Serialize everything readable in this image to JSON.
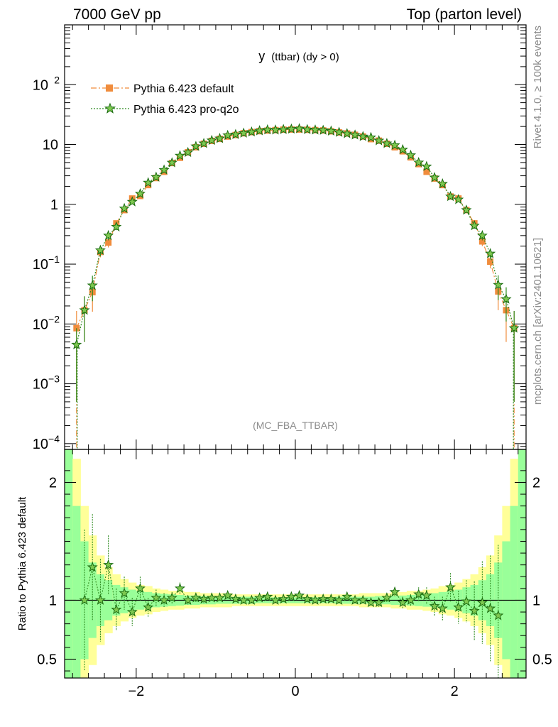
{
  "header": {
    "left": "7000 GeV pp",
    "right": "Top (parton level)"
  },
  "side_labels": {
    "rivet": "Rivet 4.1.0, ≥ 100k events",
    "mcplots": "mcplots.cern.ch [arXiv:2401.10621]"
  },
  "colors": {
    "default": "#f08c3c",
    "proq2o": "#2e8b20",
    "band_outer": "#ffff99",
    "band_inner": "#99ff99"
  },
  "chart_data": [
    {
      "type": "line",
      "title": "y (ttbar) (dy > 0)",
      "title_main": "y",
      "title_sub": "(ttbar) (dy > 0)",
      "analysis": "(MC_FBA_TTBAR)",
      "yscale": "log",
      "xlim": [
        -2.9,
        2.9
      ],
      "ylim": [
        8e-05,
        1000
      ],
      "yticks": [
        {
          "v": 0.0001,
          "b": "10",
          "e": "−4"
        },
        {
          "v": 0.001,
          "b": "10",
          "e": "−3"
        },
        {
          "v": 0.01,
          "b": "10",
          "e": "−2"
        },
        {
          "v": 0.1,
          "b": "10",
          "e": "−1"
        },
        {
          "v": 1,
          "b": "1",
          "e": ""
        },
        {
          "v": 10,
          "b": "10",
          "e": ""
        },
        {
          "v": 100,
          "b": "10",
          "e": "2"
        }
      ],
      "x": [
        -2.75,
        -2.65,
        -2.55,
        -2.45,
        -2.35,
        -2.25,
        -2.15,
        -2.05,
        -1.95,
        -1.85,
        -1.75,
        -1.65,
        -1.55,
        -1.45,
        -1.35,
        -1.25,
        -1.15,
        -1.05,
        -0.95,
        -0.85,
        -0.75,
        -0.65,
        -0.55,
        -0.45,
        -0.35,
        -0.25,
        -0.15,
        -0.05,
        0.05,
        0.15,
        0.25,
        0.35,
        0.45,
        0.55,
        0.65,
        0.75,
        0.85,
        0.95,
        1.05,
        1.15,
        1.25,
        1.35,
        1.45,
        1.55,
        1.65,
        1.75,
        1.85,
        1.95,
        2.05,
        2.15,
        2.25,
        2.35,
        2.45,
        2.55,
        2.65,
        2.75
      ],
      "series": [
        {
          "name": "Pythia 6.423 default",
          "marker": "square",
          "values": [
            0.0085,
            0.017,
            0.034,
            0.16,
            0.23,
            0.48,
            0.8,
            1.25,
            1.38,
            2.1,
            2.75,
            3.5,
            4.9,
            6.0,
            7.4,
            9.0,
            10.3,
            11.5,
            12.4,
            13.6,
            14.4,
            15.4,
            16.1,
            16.7,
            17.1,
            17.4,
            17.7,
            17.8,
            17.8,
            17.6,
            17.4,
            17.2,
            16.6,
            15.9,
            15.3,
            14.5,
            13.6,
            12.3,
            11.6,
            10.3,
            9.0,
            7.7,
            6.1,
            4.7,
            3.5,
            2.7,
            2.1,
            1.35,
            1.25,
            0.8,
            0.48,
            0.24,
            0.11,
            0.035,
            0.017,
            0.0085
          ],
          "err": [
            0.008,
            0.012,
            0.018,
            0.03,
            0.04,
            0.05,
            0.06,
            0.08,
            0.08,
            0.1,
            0.12,
            0.14,
            0.16,
            0.18,
            0.2,
            0.22,
            0.24,
            0.25,
            0.26,
            0.28,
            0.28,
            0.3,
            0.3,
            0.3,
            0.3,
            0.3,
            0.3,
            0.3,
            0.3,
            0.3,
            0.3,
            0.3,
            0.3,
            0.3,
            0.3,
            0.28,
            0.28,
            0.26,
            0.25,
            0.24,
            0.22,
            0.2,
            0.18,
            0.16,
            0.14,
            0.12,
            0.1,
            0.08,
            0.08,
            0.06,
            0.05,
            0.04,
            0.025,
            0.018,
            0.012,
            0.008
          ]
        },
        {
          "name": "Pythia 6.423 pro-q2o",
          "marker": "star",
          "values": [
            0.0045,
            0.017,
            0.044,
            0.17,
            0.3,
            0.42,
            0.85,
            1.1,
            1.5,
            2.3,
            2.85,
            3.75,
            4.95,
            6.5,
            7.35,
            9.3,
            10.4,
            11.7,
            12.6,
            14.2,
            14.7,
            15.5,
            16.2,
            17.0,
            17.6,
            17.5,
            17.8,
            18.1,
            18.4,
            17.8,
            17.5,
            17.3,
            16.8,
            16.0,
            15.2,
            14.4,
            13.6,
            13.1,
            11.6,
            10.4,
            9.7,
            8.2,
            6.6,
            5.0,
            4.3,
            2.8,
            2.2,
            1.35,
            1.2,
            0.8,
            0.44,
            0.3,
            0.15,
            0.045,
            0.026,
            0.0085
          ],
          "err": [
            0.004,
            0.012,
            0.02,
            0.035,
            0.05,
            0.05,
            0.07,
            0.08,
            0.1,
            0.12,
            0.14,
            0.16,
            0.18,
            0.2,
            0.22,
            0.24,
            0.26,
            0.27,
            0.28,
            0.3,
            0.3,
            0.32,
            0.32,
            0.32,
            0.32,
            0.32,
            0.32,
            0.32,
            0.32,
            0.32,
            0.32,
            0.32,
            0.32,
            0.32,
            0.32,
            0.3,
            0.3,
            0.28,
            0.27,
            0.26,
            0.24,
            0.22,
            0.2,
            0.18,
            0.16,
            0.14,
            0.12,
            0.1,
            0.08,
            0.07,
            0.05,
            0.05,
            0.03,
            0.02,
            0.015,
            0.008
          ]
        }
      ]
    },
    {
      "type": "line",
      "ylabel": "Ratio to Pythia 6.423 default",
      "xlim": [
        -2.9,
        2.9
      ],
      "ylim": [
        0.34,
        2.28
      ],
      "yticks": [
        0.5,
        1,
        2
      ],
      "ytick_labels": [
        "0.5",
        "1",
        "2"
      ],
      "xticks": [
        -2,
        0,
        2
      ],
      "xtick_labels": [
        "−2",
        "0",
        "2"
      ],
      "reference": 1,
      "band_x": [
        -2.85,
        -2.75,
        -2.65,
        -2.55,
        -2.45,
        -2.35,
        -2.25,
        -2.15,
        -2.05,
        -1.95,
        -1.85,
        -1.75,
        -1.65,
        -1.55,
        -1.45,
        -1.35,
        -1.25,
        -1.15,
        -1.05,
        -0.95,
        -0.85,
        -0.75,
        -0.65,
        -0.55,
        -0.45,
        -0.35,
        -0.25,
        -0.15,
        -0.05,
        0.05,
        0.15,
        0.25,
        0.35,
        0.45,
        0.55,
        0.65,
        0.75,
        0.85,
        0.95,
        1.05,
        1.15,
        1.25,
        1.35,
        1.45,
        1.55,
        1.65,
        1.75,
        1.85,
        1.95,
        2.05,
        2.15,
        2.25,
        2.35,
        2.45,
        2.55,
        2.65,
        2.75,
        2.85
      ],
      "band_outer_halfwidth": [
        2.0,
        1.2,
        0.8,
        0.55,
        0.38,
        0.28,
        0.22,
        0.18,
        0.15,
        0.13,
        0.12,
        0.1,
        0.09,
        0.08,
        0.08,
        0.07,
        0.07,
        0.06,
        0.06,
        0.06,
        0.06,
        0.05,
        0.05,
        0.05,
        0.05,
        0.05,
        0.05,
        0.05,
        0.05,
        0.05,
        0.05,
        0.05,
        0.05,
        0.05,
        0.05,
        0.05,
        0.05,
        0.06,
        0.06,
        0.06,
        0.06,
        0.07,
        0.07,
        0.08,
        0.08,
        0.09,
        0.1,
        0.12,
        0.13,
        0.15,
        0.18,
        0.22,
        0.28,
        0.38,
        0.55,
        0.8,
        1.2,
        2.0
      ],
      "band_inner_halfwidth": [
        1.5,
        0.8,
        0.5,
        0.32,
        0.22,
        0.17,
        0.13,
        0.11,
        0.09,
        0.08,
        0.07,
        0.06,
        0.055,
        0.05,
        0.045,
        0.04,
        0.04,
        0.035,
        0.035,
        0.03,
        0.03,
        0.03,
        0.03,
        0.03,
        0.025,
        0.025,
        0.025,
        0.025,
        0.025,
        0.025,
        0.025,
        0.025,
        0.025,
        0.025,
        0.03,
        0.03,
        0.03,
        0.03,
        0.03,
        0.035,
        0.035,
        0.04,
        0.04,
        0.045,
        0.05,
        0.055,
        0.06,
        0.07,
        0.08,
        0.09,
        0.11,
        0.13,
        0.17,
        0.22,
        0.32,
        0.5,
        0.8,
        1.5
      ],
      "ratio_x": [
        -2.65,
        -2.55,
        -2.45,
        -2.35,
        -2.25,
        -2.15,
        -2.05,
        -1.95,
        -1.85,
        -1.75,
        -1.65,
        -1.55,
        -1.45,
        -1.35,
        -1.25,
        -1.15,
        -1.05,
        -0.95,
        -0.85,
        -0.75,
        -0.65,
        -0.55,
        -0.45,
        -0.35,
        -0.25,
        -0.15,
        -0.05,
        0.05,
        0.15,
        0.25,
        0.35,
        0.45,
        0.55,
        0.65,
        0.75,
        0.85,
        0.95,
        1.05,
        1.15,
        1.25,
        1.35,
        1.45,
        1.55,
        1.65,
        1.75,
        1.85,
        1.95,
        2.05,
        2.15,
        2.25,
        2.35,
        2.45,
        2.55
      ],
      "ratio_values": [
        1.0,
        1.28,
        1.0,
        1.3,
        0.92,
        1.06,
        0.9,
        1.1,
        0.94,
        1.02,
        1.0,
        1.02,
        1.1,
        1.0,
        1.02,
        1.01,
        1.02,
        1.02,
        1.04,
        1.01,
        1.0,
        1.0,
        1.02,
        1.03,
        1.0,
        1.01,
        1.03,
        1.04,
        1.01,
        1.0,
        1.01,
        1.01,
        1.0,
        1.03,
        1.0,
        1.0,
        0.98,
        0.98,
        1.02,
        1.07,
        0.98,
        1.0,
        1.05,
        1.04,
        0.95,
        0.93,
        1.11,
        0.94,
        0.99,
        0.91,
        0.98,
        0.93,
        0.87
      ],
      "ratio_err": [
        0.6,
        0.45,
        0.35,
        0.25,
        0.18,
        0.14,
        0.12,
        0.1,
        0.08,
        0.07,
        0.06,
        0.05,
        0.05,
        0.04,
        0.04,
        0.04,
        0.03,
        0.03,
        0.03,
        0.03,
        0.03,
        0.03,
        0.03,
        0.03,
        0.03,
        0.03,
        0.03,
        0.03,
        0.03,
        0.03,
        0.03,
        0.03,
        0.03,
        0.03,
        0.03,
        0.03,
        0.03,
        0.04,
        0.04,
        0.04,
        0.05,
        0.05,
        0.06,
        0.07,
        0.08,
        0.1,
        0.12,
        0.14,
        0.18,
        0.25,
        0.35,
        0.45,
        0.6
      ]
    }
  ]
}
